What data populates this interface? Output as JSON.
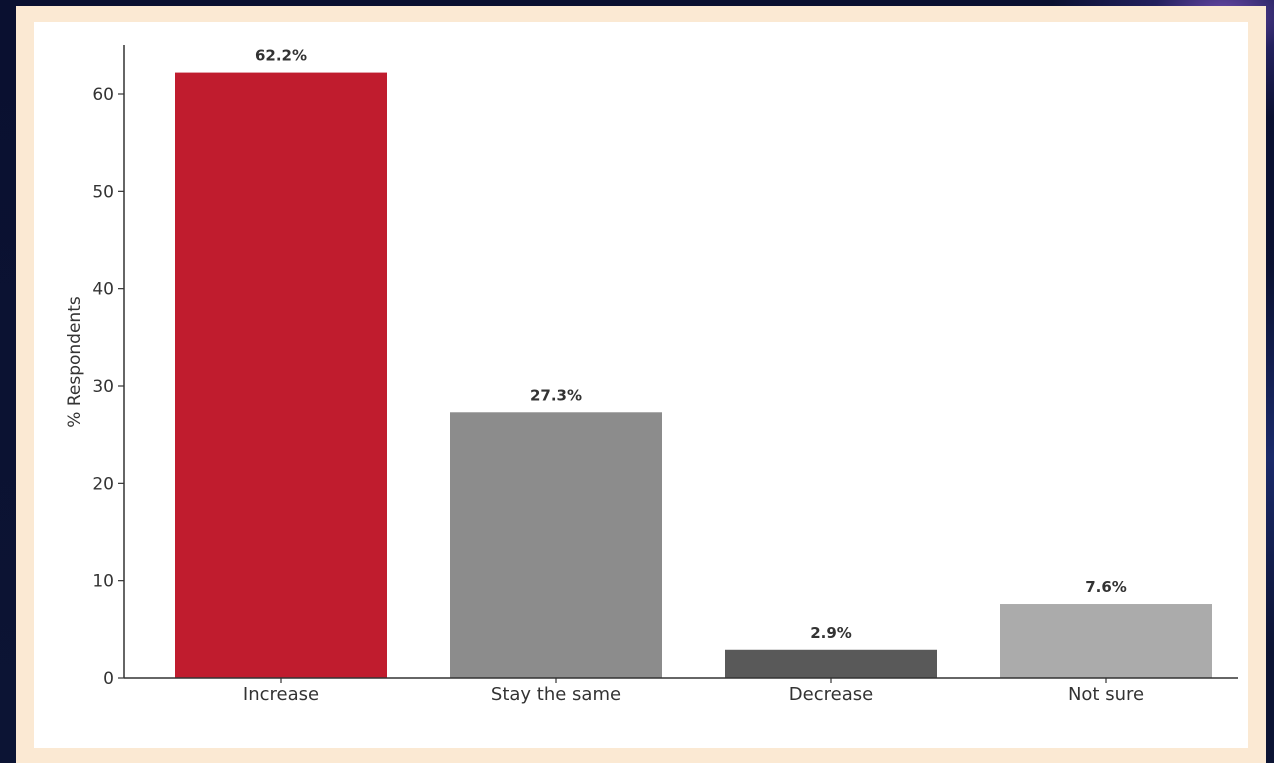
{
  "chart_data": {
    "type": "bar",
    "categories": [
      "Increase",
      "Stay the same",
      "Decrease",
      "Not sure"
    ],
    "values": [
      62.2,
      27.3,
      2.9,
      7.6
    ],
    "value_labels": [
      "62.2%",
      "27.3%",
      "2.9%",
      "7.6%"
    ],
    "colors": [
      "#c01c2e",
      "#8c8c8c",
      "#595959",
      "#ababab"
    ],
    "title": "",
    "xlabel": "",
    "ylabel": "% Respondents",
    "ylim": [
      0,
      65
    ],
    "yticks": [
      0,
      10,
      20,
      30,
      40,
      50,
      60
    ],
    "grid": false,
    "legend": "none"
  },
  "colors": {
    "frame": "#fbe9d3",
    "panel": "#ffffff",
    "background": "#0b1230",
    "axis": "#333333"
  }
}
